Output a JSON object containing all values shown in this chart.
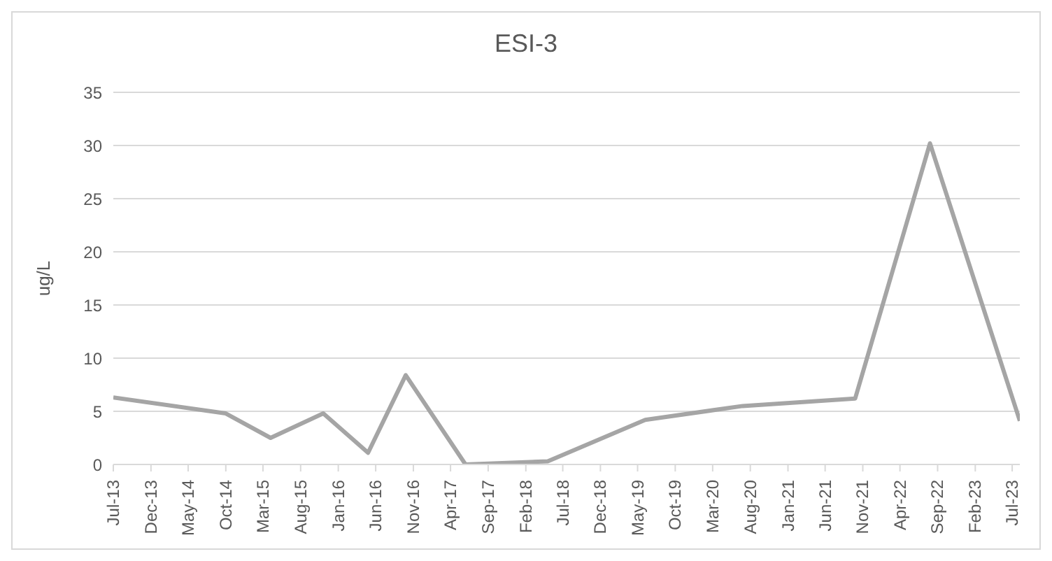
{
  "chart_data": {
    "type": "line",
    "title": "ESI-3",
    "ylabel": "ug/L",
    "x": [
      "2013-07",
      "2014-10",
      "2015-04",
      "2015-11",
      "2016-05",
      "2016-10",
      "2017-06",
      "2018-05",
      "2019-06",
      "2020-07",
      "2021-10",
      "2022-08",
      "2023-08"
    ],
    "series": [
      {
        "color": "#a5a5a5",
        "values": [
          6.3,
          4.8,
          2.5,
          4.8,
          1.1,
          8.4,
          0,
          0.3,
          4.2,
          5.5,
          6.2,
          30.2,
          4.1
        ]
      }
    ],
    "xlim": [
      "2013-07",
      "2023-08"
    ],
    "xticks": [
      {
        "value": "2013-07",
        "label": "Jul-13"
      },
      {
        "value": "2013-12",
        "label": "Dec-13"
      },
      {
        "value": "2014-05",
        "label": "May-14"
      },
      {
        "value": "2014-10",
        "label": "Oct-14"
      },
      {
        "value": "2015-03",
        "label": "Mar-15"
      },
      {
        "value": "2015-08",
        "label": "Aug-15"
      },
      {
        "value": "2016-01",
        "label": "Jan-16"
      },
      {
        "value": "2016-06",
        "label": "Jun-16"
      },
      {
        "value": "2016-11",
        "label": "Nov-16"
      },
      {
        "value": "2017-04",
        "label": "Apr-17"
      },
      {
        "value": "2017-09",
        "label": "Sep-17"
      },
      {
        "value": "2018-02",
        "label": "Feb-18"
      },
      {
        "value": "2018-07",
        "label": "Jul-18"
      },
      {
        "value": "2018-12",
        "label": "Dec-18"
      },
      {
        "value": "2019-05",
        "label": "May-19"
      },
      {
        "value": "2019-10",
        "label": "Oct-19"
      },
      {
        "value": "2020-03",
        "label": "Mar-20"
      },
      {
        "value": "2020-08",
        "label": "Aug-20"
      },
      {
        "value": "2021-01",
        "label": "Jan-21"
      },
      {
        "value": "2021-06",
        "label": "Jun-21"
      },
      {
        "value": "2021-11",
        "label": "Nov-21"
      },
      {
        "value": "2022-04",
        "label": "Apr-22"
      },
      {
        "value": "2022-09",
        "label": "Sep-22"
      },
      {
        "value": "2023-02",
        "label": "Feb-23"
      },
      {
        "value": "2023-07",
        "label": "Jul-23"
      }
    ],
    "ylim": [
      0,
      35
    ],
    "yticks": [
      0,
      5,
      10,
      15,
      20,
      25,
      30,
      35
    ],
    "grid": "y",
    "marker": "none",
    "line_style": "solid"
  }
}
